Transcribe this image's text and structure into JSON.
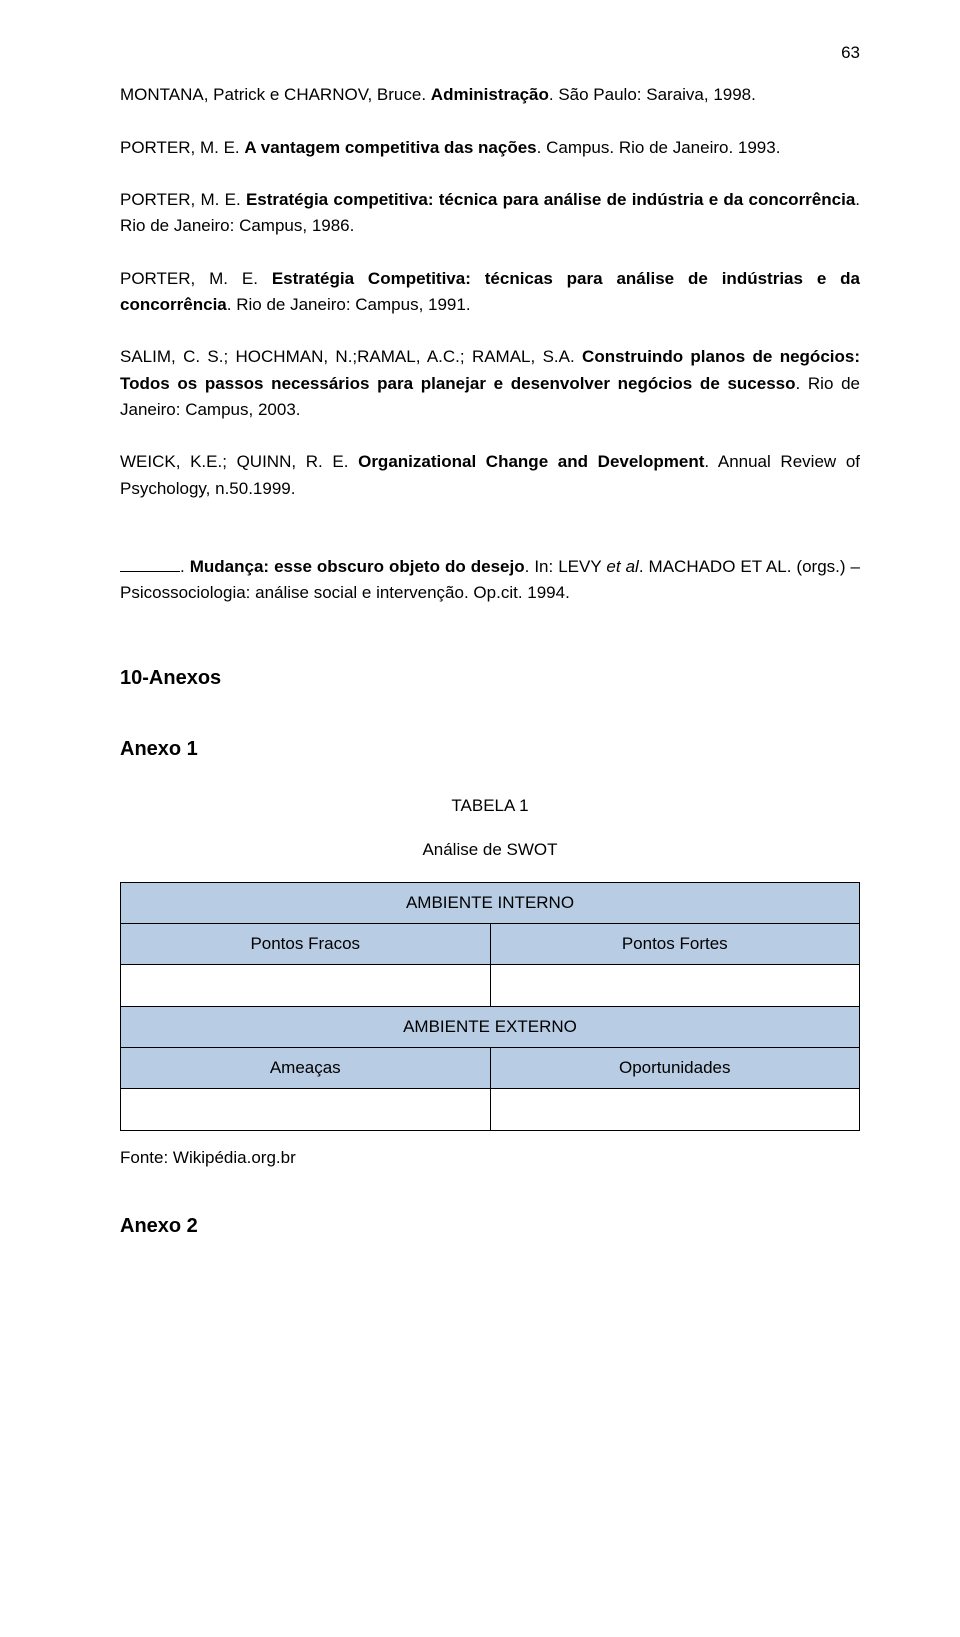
{
  "page_number": "63",
  "refs": {
    "r1_a": "MONTANA, Patrick e CHARNOV, Bruce. ",
    "r1_b": "Administração",
    "r1_c": ". São Paulo: Saraiva, 1998.",
    "r2_a": "PORTER, M. E. ",
    "r2_b": "A vantagem competitiva das nações",
    "r2_c": ". Campus. Rio de Janeiro. 1993.",
    "r3_a": "PORTER, M. E. ",
    "r3_b": "Estratégia competitiva: técnica para análise de indústria e da concorrência",
    "r3_c": ". Rio de Janeiro: Campus, 1986.",
    "r4_a": "PORTER, M. E. ",
    "r4_b": "Estratégia Competitiva: técnicas para análise de indústrias e da concorrência",
    "r4_c": ". Rio de Janeiro: Campus, 1991.",
    "r5_a": "SALIM, C. S.; HOCHMAN, N.;RAMAL, A.C.; RAMAL, S.A. ",
    "r5_b": "Construindo planos de negócios: Todos os passos necessários para planejar e desenvolver negócios de sucesso",
    "r5_c": ". Rio de Janeiro: Campus, 2003.",
    "r6_a": "WEICK, K.E.; QUINN, R. E. ",
    "r6_b": "Organizational Change and Development",
    "r6_c": ". Annual Review of Psychology, n.50.1999.",
    "r7_a": ". ",
    "r7_b": "Mudança: esse obscuro objeto do desejo",
    "r7_c": ". In: LEVY ",
    "r7_d": "et al",
    "r7_e": ". MACHADO ET AL. (orgs.) – Psicossociologia: análise social e intervenção. Op.cit. 1994."
  },
  "section_title": "10-Anexos",
  "anexo1_title": "Anexo 1",
  "table": {
    "label": "TABELA 1",
    "subtitle": "Análise de SWOT",
    "interno_header": "AMBIENTE INTERNO",
    "fracos": "Pontos Fracos",
    "fortes": "Pontos Fortes",
    "externo_header": "AMBIENTE EXTERNO",
    "ameacas": "Ameaças",
    "oportunidades": "Oportunidades",
    "header_bg": "#b8cce4",
    "border_color": "#000000"
  },
  "fonte": "Fonte: Wikipédia.org.br",
  "anexo2_title": "Anexo 2"
}
